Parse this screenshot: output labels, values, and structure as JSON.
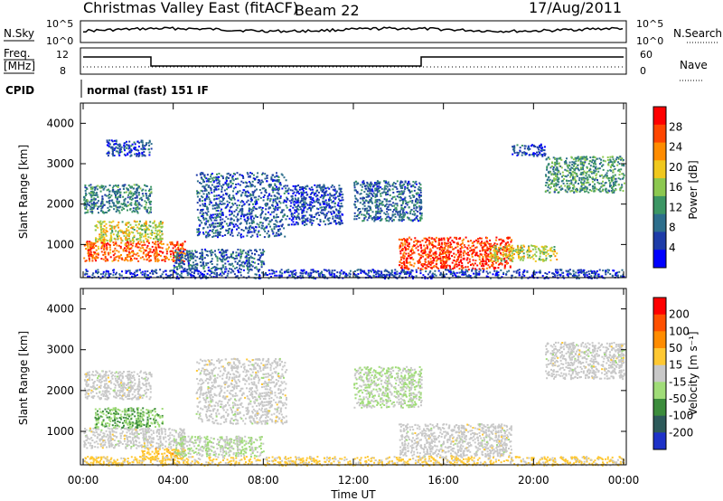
{
  "header": {
    "station": "Christmas Valley East (fitACF)",
    "beam": "Beam 22",
    "date": "17/Aug/2011"
  },
  "top_panels": {
    "nsky_label": "N.Sky",
    "nsearch_label": "N.Search",
    "noise_ticks_left": [
      "10^5",
      "10^0"
    ],
    "noise_ticks_right": [
      "10^5",
      "10^0"
    ],
    "freq_label": "Freq.",
    "freq_unit": "[MHz]",
    "freq_ticks": [
      "12",
      "8"
    ],
    "nave_label": "Nave",
    "nave_ticks": [
      "60",
      "0"
    ],
    "cpid_label": "CPID",
    "cpid_value": "normal (fast) 151 IF"
  },
  "colors": {
    "power_scale": [
      "#0000ff",
      "#1e3ca8",
      "#2d6e8c",
      "#3c9664",
      "#8cc850",
      "#f0c81e",
      "#ff8c00",
      "#ff4600",
      "#ff0000"
    ],
    "velocity_scale": [
      "#1e32c8",
      "#2d5a5a",
      "#3c8c3c",
      "#a0dc78",
      "#c8c8c8",
      "#ffc832",
      "#ff8c00",
      "#ff5000",
      "#ff0000"
    ]
  },
  "chart_data": [
    {
      "type": "heatmap",
      "name": "power",
      "xlabel": "Time UT",
      "ylabel": "Slant Range [km]",
      "colorbar_label": "Power [dB]",
      "colorbar_ticks": [
        "4",
        "8",
        "12",
        "16",
        "20",
        "24",
        "28"
      ],
      "x_ticks": [
        "00:00",
        "04:00",
        "08:00",
        "12:00",
        "16:00",
        "20:00",
        "00:00"
      ],
      "y_ticks": [
        "1000",
        "2000",
        "3000",
        "4000"
      ],
      "xlim": [
        0,
        24
      ],
      "ylim": [
        180,
        4500
      ],
      "grid": false,
      "regions": [
        {
          "t": [
            0,
            4.5
          ],
          "r": [
            600,
            1100
          ],
          "value": 26
        },
        {
          "t": [
            0.5,
            3.5
          ],
          "r": [
            1100,
            1600
          ],
          "value": 18
        },
        {
          "t": [
            0,
            3
          ],
          "r": [
            1800,
            2500
          ],
          "value": 10
        },
        {
          "t": [
            1,
            3
          ],
          "r": [
            3200,
            3600
          ],
          "value": 6
        },
        {
          "t": [
            4,
            8
          ],
          "r": [
            400,
            900
          ],
          "value": 8
        },
        {
          "t": [
            5,
            9
          ],
          "r": [
            1200,
            2800
          ],
          "value": 7
        },
        {
          "t": [
            9,
            11.5
          ],
          "r": [
            1500,
            2500
          ],
          "value": 6
        },
        {
          "t": [
            12,
            15
          ],
          "r": [
            1600,
            2600
          ],
          "value": 8
        },
        {
          "t": [
            14,
            19
          ],
          "r": [
            400,
            1200
          ],
          "value": 28
        },
        {
          "t": [
            18,
            21
          ],
          "r": [
            600,
            1000
          ],
          "value": 18
        },
        {
          "t": [
            20.5,
            24
          ],
          "r": [
            2300,
            3200
          ],
          "value": 12
        },
        {
          "t": [
            19,
            20.5
          ],
          "r": [
            3200,
            3500
          ],
          "value": 6
        },
        {
          "t": [
            0,
            24
          ],
          "r": [
            180,
            400
          ],
          "value": 5
        }
      ]
    },
    {
      "type": "heatmap",
      "name": "velocity",
      "xlabel": "Time UT",
      "ylabel": "Slant Range [km]",
      "colorbar_label": "Velocity [m s⁻¹]",
      "colorbar_ticks": [
        "200",
        "100",
        "50",
        "15",
        "-15",
        "-50",
        "-100",
        "-200"
      ],
      "x_ticks": [
        "00:00",
        "04:00",
        "08:00",
        "12:00",
        "16:00",
        "20:00",
        "00:00"
      ],
      "y_ticks": [
        "1000",
        "2000",
        "3000",
        "4000"
      ],
      "xlim": [
        0,
        24
      ],
      "ylim": [
        180,
        4500
      ],
      "grid": false,
      "regions": [
        {
          "t": [
            0,
            4.5
          ],
          "r": [
            600,
            1100
          ],
          "value": 0
        },
        {
          "t": [
            0.5,
            3.5
          ],
          "r": [
            1100,
            1600
          ],
          "value": 80
        },
        {
          "t": [
            0,
            3
          ],
          "r": [
            1800,
            2500
          ],
          "value": 0
        },
        {
          "t": [
            2.5,
            4.5
          ],
          "r": [
            300,
            600
          ],
          "value": -60
        },
        {
          "t": [
            4,
            8
          ],
          "r": [
            400,
            900
          ],
          "value": 30
        },
        {
          "t": [
            5,
            9
          ],
          "r": [
            1200,
            2800
          ],
          "value": 0
        },
        {
          "t": [
            12,
            15
          ],
          "r": [
            1600,
            2600
          ],
          "value": 30
        },
        {
          "t": [
            14,
            19
          ],
          "r": [
            400,
            1200
          ],
          "value": 0
        },
        {
          "t": [
            20.5,
            24
          ],
          "r": [
            2300,
            3200
          ],
          "value": 0
        },
        {
          "t": [
            0,
            24
          ],
          "r": [
            180,
            400
          ],
          "value": -40
        }
      ]
    }
  ]
}
